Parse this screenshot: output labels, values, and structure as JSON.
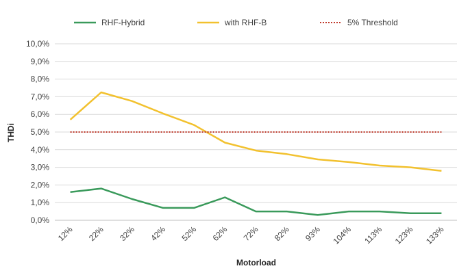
{
  "chart_data": {
    "type": "line",
    "xlabel": "Motorload",
    "ylabel": "THDi",
    "categories": [
      "12%",
      "22%",
      "32%",
      "42%",
      "52%",
      "62%",
      "72%",
      "82%",
      "93%",
      "104%",
      "113%",
      "123%",
      "133%"
    ],
    "ylim": [
      0,
      10
    ],
    "y_ticks": [
      "0,0%",
      "1,0%",
      "2,0%",
      "3,0%",
      "4,0%",
      "5,0%",
      "6,0%",
      "7,0%",
      "8,0%",
      "9,0%",
      "10,0%"
    ],
    "grid": true,
    "legend_position": "top",
    "series": [
      {
        "name": "RHF-Hybrid",
        "color": "#3a9a5b",
        "style": "solid",
        "values": [
          1.6,
          1.8,
          1.2,
          0.7,
          0.7,
          1.3,
          0.5,
          0.5,
          0.3,
          0.5,
          0.5,
          0.4,
          0.4
        ]
      },
      {
        "name": "with RHF-B",
        "color": "#f2c12e",
        "style": "solid",
        "values": [
          5.7,
          7.25,
          6.75,
          6.05,
          5.4,
          4.4,
          3.95,
          3.75,
          3.45,
          3.3,
          3.1,
          3.0,
          2.8
        ]
      },
      {
        "name": "5% Threshold",
        "color": "#c0392b",
        "style": "dotted",
        "values": [
          5,
          5,
          5,
          5,
          5,
          5,
          5,
          5,
          5,
          5,
          5,
          5,
          5
        ]
      }
    ]
  }
}
